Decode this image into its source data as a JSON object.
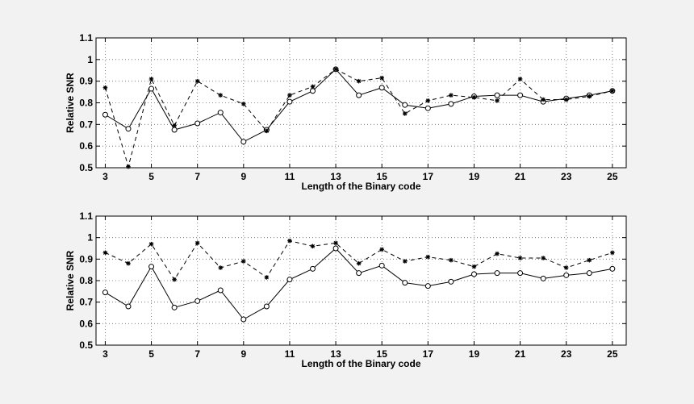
{
  "chart_data": [
    {
      "type": "line",
      "xlabel": "Length of the Binary code",
      "ylabel": "Relative SNR",
      "xlim": [
        2.6,
        25.6
      ],
      "ylim": [
        0.5,
        1.1
      ],
      "grid": true,
      "x": [
        3,
        4,
        5,
        6,
        7,
        8,
        9,
        10,
        11,
        12,
        13,
        14,
        15,
        16,
        17,
        18,
        19,
        20,
        21,
        22,
        23,
        24,
        25
      ],
      "xticks": [
        "3",
        "5",
        "7",
        "9",
        "11",
        "13",
        "15",
        "17",
        "19",
        "21",
        "23",
        "25"
      ],
      "xtick_values": [
        3,
        5,
        7,
        9,
        11,
        13,
        15,
        17,
        19,
        21,
        23,
        25
      ],
      "yticks": [
        "0.5",
        "0.6",
        "0.7",
        "0.8",
        "0.9",
        "1",
        "1.1"
      ],
      "ytick_values": [
        0.5,
        0.6,
        0.7,
        0.8,
        0.9,
        1.0,
        1.1
      ],
      "series": [
        {
          "marker": "circle",
          "style": "solid",
          "values": [
            0.745,
            0.68,
            0.865,
            0.675,
            0.705,
            0.755,
            0.62,
            0.675,
            0.805,
            0.855,
            0.955,
            0.835,
            0.87,
            0.79,
            0.775,
            0.795,
            0.83,
            0.835,
            0.835,
            0.805,
            0.82,
            0.835,
            0.855
          ]
        },
        {
          "marker": "star",
          "style": "dashed",
          "values": [
            0.87,
            0.505,
            0.91,
            0.695,
            0.9,
            0.835,
            0.795,
            0.67,
            0.835,
            0.875,
            0.955,
            0.9,
            0.915,
            0.75,
            0.81,
            0.835,
            0.825,
            0.81,
            0.91,
            0.815,
            0.815,
            0.83,
            0.855
          ]
        }
      ]
    },
    {
      "type": "line",
      "xlabel": "Length of the Binary code",
      "ylabel": "Relative SNR",
      "xlim": [
        2.6,
        25.6
      ],
      "ylim": [
        0.5,
        1.1
      ],
      "grid": true,
      "x": [
        3,
        4,
        5,
        6,
        7,
        8,
        9,
        10,
        11,
        12,
        13,
        14,
        15,
        16,
        17,
        18,
        19,
        20,
        21,
        22,
        23,
        24,
        25
      ],
      "xticks": [
        "3",
        "5",
        "7",
        "9",
        "11",
        "13",
        "15",
        "17",
        "19",
        "21",
        "23",
        "25"
      ],
      "xtick_values": [
        3,
        5,
        7,
        9,
        11,
        13,
        15,
        17,
        19,
        21,
        23,
        25
      ],
      "yticks": [
        "0.5",
        "0.6",
        "0.7",
        "0.8",
        "0.9",
        "1",
        "1.1"
      ],
      "ytick_values": [
        0.5,
        0.6,
        0.7,
        0.8,
        0.9,
        1.0,
        1.1
      ],
      "series": [
        {
          "marker": "circle",
          "style": "solid",
          "values": [
            0.745,
            0.68,
            0.865,
            0.675,
            0.705,
            0.755,
            0.62,
            0.68,
            0.805,
            0.855,
            0.95,
            0.835,
            0.87,
            0.79,
            0.775,
            0.795,
            0.83,
            0.835,
            0.835,
            0.81,
            0.825,
            0.835,
            0.855
          ]
        },
        {
          "marker": "star",
          "style": "dashed",
          "values": [
            0.93,
            0.88,
            0.97,
            0.805,
            0.975,
            0.86,
            0.89,
            0.815,
            0.985,
            0.96,
            0.975,
            0.88,
            0.945,
            0.89,
            0.91,
            0.895,
            0.865,
            0.925,
            0.905,
            0.905,
            0.86,
            0.895,
            0.93
          ]
        }
      ]
    }
  ]
}
